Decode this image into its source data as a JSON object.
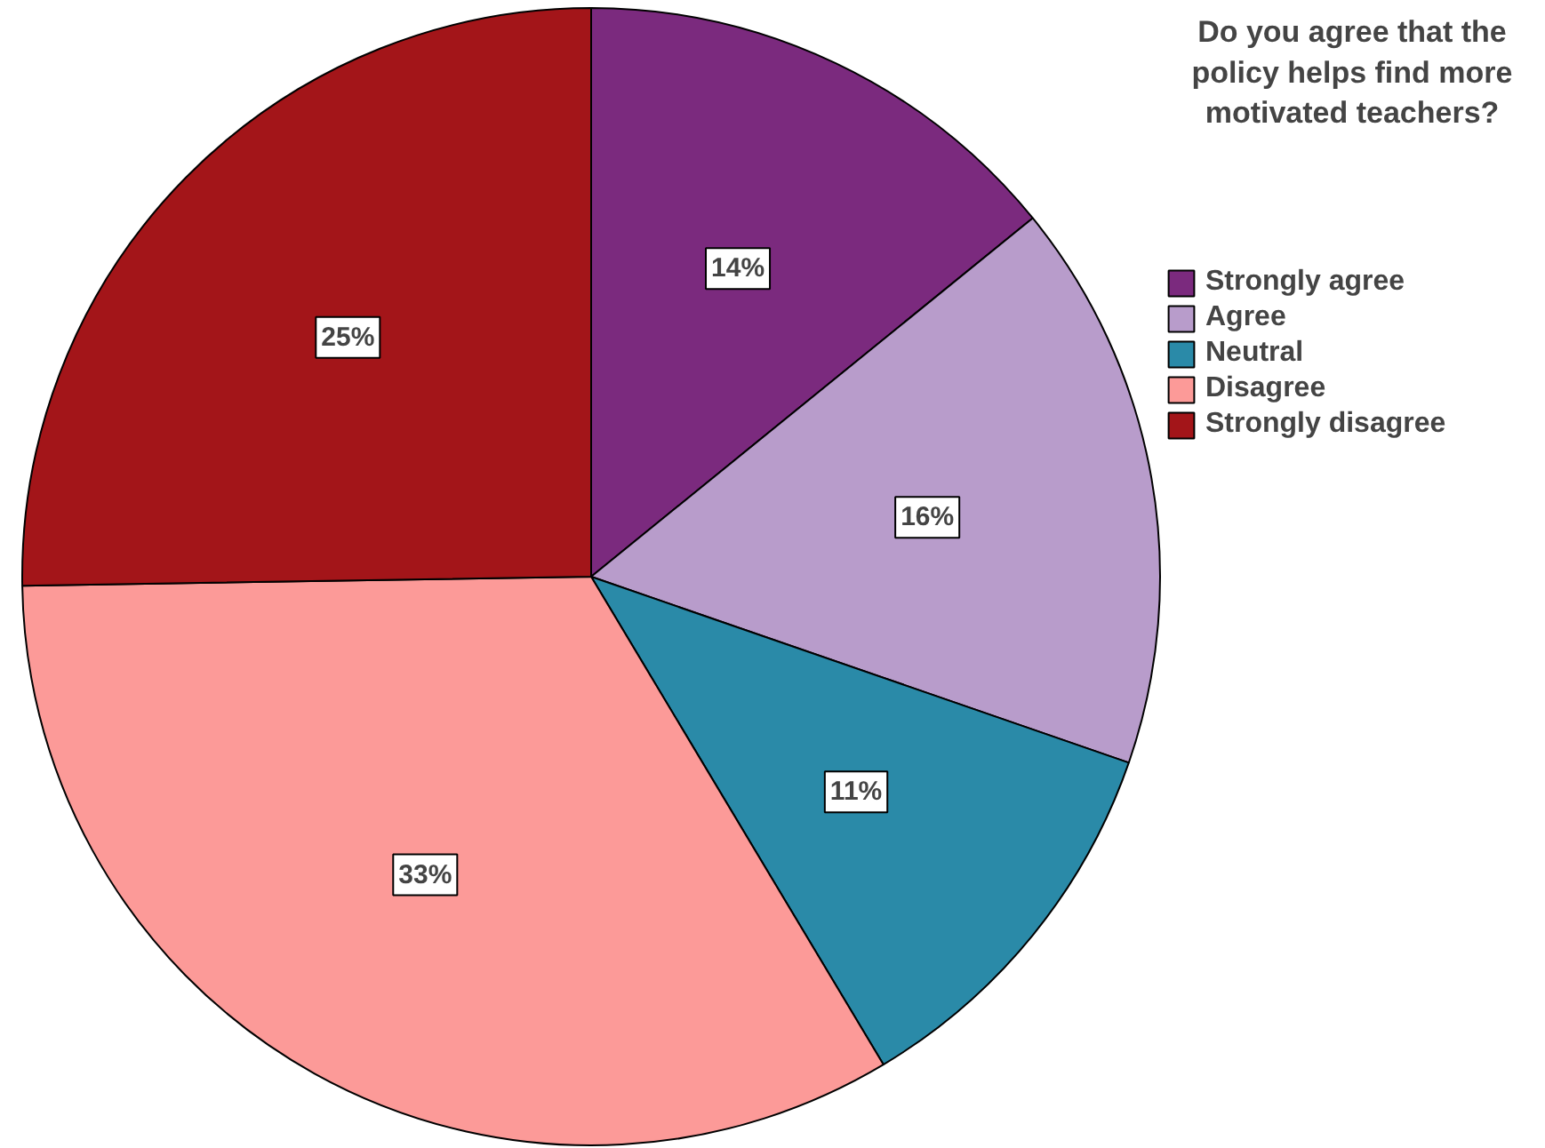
{
  "chart_data": {
    "type": "pie",
    "legend_title": "Do you agree that the policy helps find more motivated teachers?",
    "categories": [
      "Strongly agree",
      "Agree",
      "Neutral",
      "Disagree",
      "Strongly disagree"
    ],
    "values": [
      14,
      16,
      11,
      33,
      25
    ],
    "value_labels": [
      "14%",
      "16%",
      "11%",
      "33%",
      "25%"
    ],
    "colors": [
      "#7b2a7e",
      "#b89ccb",
      "#2a8aa8",
      "#fc9a98",
      "#a31519"
    ],
    "legend": "top right"
  }
}
